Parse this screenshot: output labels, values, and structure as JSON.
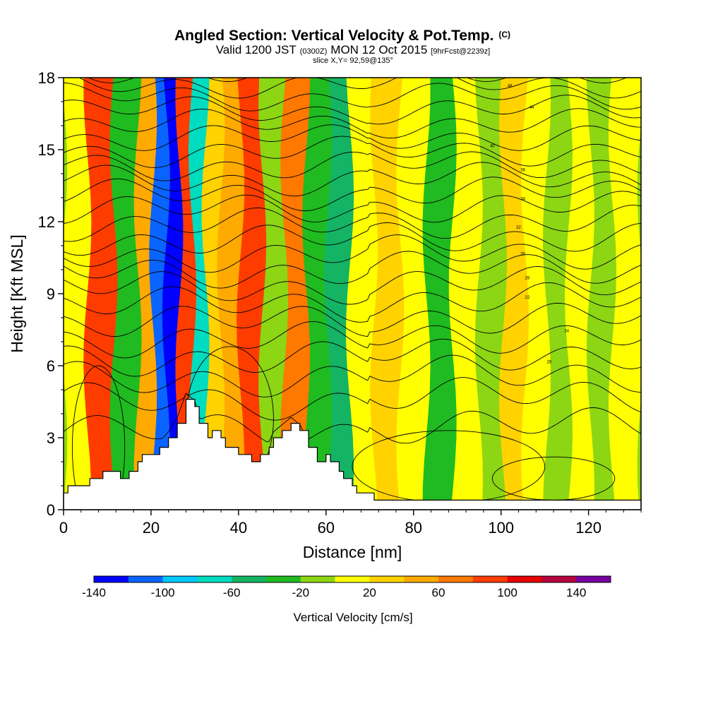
{
  "title": {
    "main": "Angled Section: Vertical Velocity & Pot.Temp.",
    "main_suffix": "(C)",
    "valid_a": "Valid 1200 JST",
    "valid_b": "(0300Z)",
    "valid_c": "MON 12 Oct 2015",
    "valid_d": "[9hrFcst@2239z]",
    "slice": "slice X,Y= 92,59@135°"
  },
  "chart_data": {
    "type": "heatmap",
    "xlabel": "Distance [nm]",
    "ylabel": "Height [Kft MSL]",
    "xlim": [
      0,
      132
    ],
    "ylim": [
      0,
      18
    ],
    "x_ticks": [
      0,
      20,
      40,
      60,
      80,
      100,
      120
    ],
    "y_ticks": [
      0,
      3,
      6,
      9,
      12,
      15,
      18
    ],
    "colorbar": {
      "label": "Vertical Velocity [cm/s]",
      "range": [
        -140,
        160
      ],
      "tick_labels": [
        "-140",
        "-100",
        "-60",
        "-20",
        "20",
        "60",
        "100",
        "140"
      ],
      "tick_values": [
        -140,
        -100,
        -60,
        -20,
        20,
        60,
        100,
        140
      ],
      "colors": [
        "#0000ff",
        "#0a64ff",
        "#00c8ff",
        "#00dcc0",
        "#14b464",
        "#20bb20",
        "#8cd614",
        "#ffff00",
        "#ffd200",
        "#ffaa00",
        "#ff7800",
        "#ff3c00",
        "#e60000",
        "#b4003c",
        "#7800a0"
      ]
    },
    "velocity_bands": [
      {
        "x_center": 3,
        "value": 10
      },
      {
        "x_center": 8,
        "value": 95
      },
      {
        "x_center": 15,
        "value": -40
      },
      {
        "x_center": 19,
        "value": 45
      },
      {
        "x_center": 22,
        "value": -110
      },
      {
        "x_center": 25,
        "value": -135
      },
      {
        "x_center": 28,
        "value": 95
      },
      {
        "x_center": 31,
        "value": -80
      },
      {
        "x_center": 34,
        "value": 35
      },
      {
        "x_center": 38,
        "value": 55
      },
      {
        "x_center": 43,
        "value": 85
      },
      {
        "x_center": 48,
        "value": -15
      },
      {
        "x_center": 53,
        "value": 75
      },
      {
        "x_center": 58,
        "value": -25
      },
      {
        "x_center": 63,
        "value": -45
      },
      {
        "x_center": 68,
        "value": 10
      },
      {
        "x_center": 74,
        "value": 25
      },
      {
        "x_center": 80,
        "value": 15
      },
      {
        "x_center": 86,
        "value": -25
      },
      {
        "x_center": 92,
        "value": 5
      },
      {
        "x_center": 98,
        "value": -20
      },
      {
        "x_center": 103,
        "value": 25
      },
      {
        "x_center": 108,
        "value": 5
      },
      {
        "x_center": 113,
        "value": -20
      },
      {
        "x_center": 118,
        "value": 15
      },
      {
        "x_center": 123,
        "value": -15
      },
      {
        "x_center": 128,
        "value": 10
      }
    ],
    "terrain_profile": [
      {
        "x": 0,
        "h": 0.7
      },
      {
        "x": 1,
        "h": 1.0
      },
      {
        "x": 6,
        "h": 1.3
      },
      {
        "x": 9,
        "h": 1.6
      },
      {
        "x": 13,
        "h": 1.3
      },
      {
        "x": 15,
        "h": 1.6
      },
      {
        "x": 17,
        "h": 2.0
      },
      {
        "x": 18,
        "h": 2.3
      },
      {
        "x": 22,
        "h": 2.6
      },
      {
        "x": 24,
        "h": 3.0
      },
      {
        "x": 26,
        "h": 3.6
      },
      {
        "x": 28,
        "h": 4.6
      },
      {
        "x": 30,
        "h": 4.3
      },
      {
        "x": 31,
        "h": 3.6
      },
      {
        "x": 33,
        "h": 3.0
      },
      {
        "x": 34,
        "h": 3.3
      },
      {
        "x": 36,
        "h": 3.0
      },
      {
        "x": 37,
        "h": 2.6
      },
      {
        "x": 40,
        "h": 2.3
      },
      {
        "x": 43,
        "h": 2.0
      },
      {
        "x": 45,
        "h": 2.3
      },
      {
        "x": 47,
        "h": 2.6
      },
      {
        "x": 48,
        "h": 3.0
      },
      {
        "x": 50,
        "h": 3.3
      },
      {
        "x": 52,
        "h": 3.6
      },
      {
        "x": 54,
        "h": 3.3
      },
      {
        "x": 56,
        "h": 2.6
      },
      {
        "x": 58,
        "h": 2.0
      },
      {
        "x": 60,
        "h": 2.3
      },
      {
        "x": 61,
        "h": 2.0
      },
      {
        "x": 63,
        "h": 1.6
      },
      {
        "x": 64,
        "h": 1.3
      },
      {
        "x": 66,
        "h": 1.0
      },
      {
        "x": 67,
        "h": 0.7
      },
      {
        "x": 71,
        "h": 0.4
      },
      {
        "x": 132,
        "h": 0.4
      }
    ],
    "theta_contours": {
      "unit": "C",
      "levels": [
        12,
        14,
        16,
        18,
        20,
        22,
        24,
        26,
        28,
        30,
        32,
        34,
        36,
        38,
        40,
        42,
        44,
        46,
        48,
        50,
        52,
        54,
        56
      ],
      "labels": [
        {
          "text": "22",
          "x": 106,
          "y": 8.8
        },
        {
          "text": "24",
          "x": 115,
          "y": 7.4
        },
        {
          "text": "26",
          "x": 111,
          "y": 6.1
        },
        {
          "text": "28",
          "x": 106,
          "y": 9.6
        },
        {
          "text": "30",
          "x": 105,
          "y": 10.6
        },
        {
          "text": "32",
          "x": 104,
          "y": 11.7
        },
        {
          "text": "34",
          "x": 105,
          "y": 12.9
        },
        {
          "text": "36",
          "x": 105,
          "y": 14.1
        },
        {
          "text": "40",
          "x": 98,
          "y": 15.1
        },
        {
          "text": "44",
          "x": 107,
          "y": 16.7
        },
        {
          "text": "48",
          "x": 102,
          "y": 17.6
        }
      ]
    }
  }
}
